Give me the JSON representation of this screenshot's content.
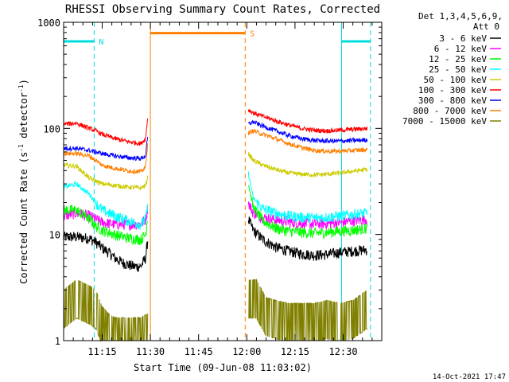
{
  "chart_data": {
    "type": "line",
    "title": "RHESSI Observing Summary Count Rates, Corrected",
    "ylabel_main": "Corrected Count Rate (s",
    "ylabel_sup1": "-1",
    "ylabel_mid": " detector",
    "ylabel_sup2": "-1",
    "ylabel_end": ")",
    "xlabel": "Start Time (09-Jun-08 11:03:02)",
    "footer": "14-Oct-2021 17:47",
    "yscale": "log",
    "ylim": [
      1,
      1000
    ],
    "xlim_minutes": [
      0,
      99
    ],
    "x_ticks": [
      {
        "label": "11:15",
        "min": 12
      },
      {
        "label": "11:30",
        "min": 27
      },
      {
        "label": "11:45",
        "min": 42
      },
      {
        "label": "12:00",
        "min": 57
      },
      {
        "label": "12:15",
        "min": 72
      },
      {
        "label": "12:30",
        "min": 87
      }
    ],
    "y_ticks": [
      {
        "label": "1",
        "v": 1
      },
      {
        "label": "10",
        "v": 10
      },
      {
        "label": "100",
        "v": 100
      },
      {
        "label": "1000",
        "v": 1000
      }
    ],
    "legend_header": [
      "Det 1,3,4,5,6,9,",
      "Att 0"
    ],
    "segments": [
      [
        0,
        26.2
      ],
      [
        57.5,
        94.5
      ]
    ],
    "series": [
      {
        "name": "3 - 6 keV",
        "color": "#000000",
        "values": [
          [
            0,
            9.5
          ],
          [
            4,
            9.5
          ],
          [
            8,
            9.2
          ],
          [
            10,
            8.5
          ],
          [
            12,
            7.5
          ],
          [
            14,
            6.8
          ],
          [
            16,
            6.0
          ],
          [
            18,
            5.5
          ],
          [
            20,
            5.2
          ],
          [
            22,
            5.0
          ],
          [
            24,
            5.0
          ],
          [
            25.5,
            6.0
          ],
          [
            26.2,
            9.0
          ],
          [
            57.5,
            14
          ],
          [
            59,
            11
          ],
          [
            62,
            9
          ],
          [
            66,
            7.6
          ],
          [
            70,
            7
          ],
          [
            74,
            6.6
          ],
          [
            78,
            6.4
          ],
          [
            82,
            6.5
          ],
          [
            86,
            6.8
          ],
          [
            90,
            7.0
          ],
          [
            94.5,
            7.2
          ]
        ]
      },
      {
        "name": "6 - 12 keV",
        "color": "#ff00ff",
        "values": [
          [
            0,
            15
          ],
          [
            4,
            16
          ],
          [
            8,
            15
          ],
          [
            10,
            14
          ],
          [
            12,
            13
          ],
          [
            16,
            12.5
          ],
          [
            20,
            12.5
          ],
          [
            24,
            12.5
          ],
          [
            25.5,
            14
          ],
          [
            26.2,
            18
          ],
          [
            57.5,
            20
          ],
          [
            59,
            16
          ],
          [
            62,
            14.5
          ],
          [
            66,
            13.8
          ],
          [
            70,
            13.2
          ],
          [
            74,
            12.8
          ],
          [
            78,
            12.6
          ],
          [
            82,
            12.7
          ],
          [
            86,
            13
          ],
          [
            90,
            13.5
          ],
          [
            94.5,
            14
          ]
        ]
      },
      {
        "name": "12 - 25 keV",
        "color": "#00ff00",
        "values": [
          [
            0,
            17
          ],
          [
            4,
            17
          ],
          [
            8,
            14
          ],
          [
            10,
            12
          ],
          [
            12,
            11
          ],
          [
            16,
            10
          ],
          [
            20,
            9.3
          ],
          [
            24,
            9
          ],
          [
            25.5,
            10
          ],
          [
            26.2,
            15
          ],
          [
            57.5,
            30
          ],
          [
            59,
            18
          ],
          [
            62,
            13.5
          ],
          [
            66,
            11.5
          ],
          [
            70,
            10.8
          ],
          [
            74,
            10.5
          ],
          [
            78,
            10.3
          ],
          [
            82,
            10.5
          ],
          [
            86,
            10.8
          ],
          [
            90,
            11
          ],
          [
            94.5,
            11.5
          ]
        ]
      },
      {
        "name": "25 - 50 keV",
        "color": "#00ffff",
        "values": [
          [
            0,
            28
          ],
          [
            4,
            30
          ],
          [
            8,
            24
          ],
          [
            10,
            20
          ],
          [
            12,
            17
          ],
          [
            16,
            15
          ],
          [
            20,
            13.5
          ],
          [
            24,
            12.5
          ],
          [
            25.5,
            14
          ],
          [
            26.2,
            18
          ],
          [
            57.5,
            38
          ],
          [
            59,
            22
          ],
          [
            62,
            17.5
          ],
          [
            66,
            16
          ],
          [
            70,
            15
          ],
          [
            74,
            14.6
          ],
          [
            78,
            14.4
          ],
          [
            82,
            14.6
          ],
          [
            86,
            15
          ],
          [
            90,
            15.5
          ],
          [
            94.5,
            16
          ]
        ]
      },
      {
        "name": "50 - 100 keV",
        "color": "#cccc00",
        "values": [
          [
            0,
            45
          ],
          [
            4,
            44
          ],
          [
            8,
            34
          ],
          [
            10,
            32
          ],
          [
            12,
            30
          ],
          [
            16,
            29
          ],
          [
            20,
            28
          ],
          [
            24,
            27.5
          ],
          [
            25.5,
            29
          ],
          [
            26.2,
            35
          ],
          [
            57.5,
            58
          ],
          [
            59,
            50
          ],
          [
            62,
            45
          ],
          [
            66,
            41
          ],
          [
            70,
            38
          ],
          [
            74,
            37
          ],
          [
            78,
            36.5
          ],
          [
            82,
            37
          ],
          [
            86,
            38
          ],
          [
            90,
            39.5
          ],
          [
            94.5,
            41
          ]
        ]
      },
      {
        "name": "100 - 300 keV",
        "color": "#ff0000",
        "values": [
          [
            0,
            110
          ],
          [
            4,
            112
          ],
          [
            8,
            100
          ],
          [
            10,
            95
          ],
          [
            12,
            88
          ],
          [
            16,
            80
          ],
          [
            20,
            75
          ],
          [
            24,
            72
          ],
          [
            25.5,
            80
          ],
          [
            26.2,
            130
          ],
          [
            57.5,
            150
          ],
          [
            59,
            140
          ],
          [
            62,
            130
          ],
          [
            66,
            118
          ],
          [
            70,
            108
          ],
          [
            74,
            100
          ],
          [
            78,
            96
          ],
          [
            82,
            95
          ],
          [
            86,
            96
          ],
          [
            90,
            98
          ],
          [
            94.5,
            100
          ]
        ]
      },
      {
        "name": "300 - 800 keV",
        "color": "#0000ff",
        "values": [
          [
            0,
            65
          ],
          [
            4,
            65
          ],
          [
            8,
            62
          ],
          [
            10,
            60
          ],
          [
            12,
            58
          ],
          [
            16,
            55
          ],
          [
            20,
            53
          ],
          [
            24,
            52
          ],
          [
            25.5,
            55
          ],
          [
            26.2,
            85
          ],
          [
            57.5,
            110
          ],
          [
            59,
            115
          ],
          [
            62,
            105
          ],
          [
            66,
            95
          ],
          [
            70,
            86
          ],
          [
            74,
            80
          ],
          [
            78,
            77
          ],
          [
            82,
            76
          ],
          [
            86,
            76
          ],
          [
            90,
            77
          ],
          [
            94.5,
            78
          ]
        ]
      },
      {
        "name": "800 - 7000 keV",
        "color": "#ff7f00",
        "values": [
          [
            0,
            58
          ],
          [
            4,
            58
          ],
          [
            8,
            55
          ],
          [
            10,
            50
          ],
          [
            12,
            45
          ],
          [
            16,
            42
          ],
          [
            20,
            40
          ],
          [
            24,
            39
          ],
          [
            25.5,
            43
          ],
          [
            26.2,
            75
          ],
          [
            57.5,
            90
          ],
          [
            59,
            95
          ],
          [
            62,
            88
          ],
          [
            66,
            80
          ],
          [
            70,
            72
          ],
          [
            74,
            66
          ],
          [
            78,
            62
          ],
          [
            82,
            61
          ],
          [
            86,
            61
          ],
          [
            90,
            62
          ],
          [
            94.5,
            63
          ]
        ]
      },
      {
        "name": "7000 - 15000 keV",
        "color": "#808000",
        "values": [
          [
            0,
            2
          ],
          [
            4,
            2.5
          ],
          [
            8,
            2.2
          ],
          [
            10,
            2
          ],
          [
            12,
            1.4
          ],
          [
            14,
            1.2
          ],
          [
            16,
            1.1
          ],
          [
            20,
            1.1
          ],
          [
            24,
            1.1
          ],
          [
            26.2,
            1.2
          ],
          [
            57.5,
            2.5
          ],
          [
            60,
            2.5
          ],
          [
            63,
            1.7
          ],
          [
            66,
            1.6
          ],
          [
            70,
            1.5
          ],
          [
            74,
            1.5
          ],
          [
            78,
            1.5
          ],
          [
            82,
            1.6
          ],
          [
            86,
            1.5
          ],
          [
            90,
            1.6
          ],
          [
            94.5,
            2.0
          ]
        ]
      }
    ],
    "flags": [
      {
        "label": "N",
        "color": "#00dddd",
        "bars": [
          [
            0,
            9.5
          ],
          [
            86.5,
            95.5
          ]
        ],
        "level": 660,
        "dashed_at": [
          9.5,
          95.5
        ],
        "solid_at": [
          0,
          86.5
        ]
      },
      {
        "label": "S",
        "color": "#ff7f00",
        "bars": [
          [
            27,
            56.5
          ]
        ],
        "level": 790,
        "dashed_at": [
          56.5
        ],
        "solid_at": [
          27
        ]
      }
    ]
  }
}
